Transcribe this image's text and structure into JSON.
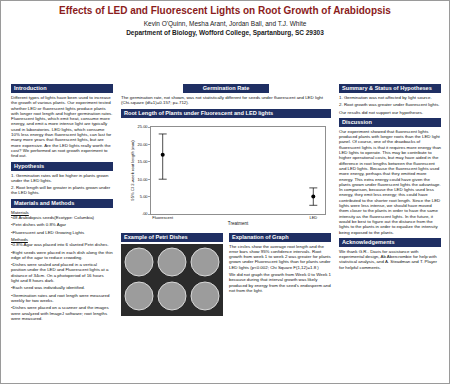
{
  "header": {
    "title": "Effects of LED and Fluorescent Lights on Root Growth of Arabidopsis",
    "authors": "Kevin O'Quinn, Mesha Arant, Jordan Ball, and T.J. White",
    "department": "Department of Biology, Wofford College, Spartanburg, SC 29303"
  },
  "sections": {
    "introduction": {
      "heading": "Introduction",
      "text": "Different types of lights have been used to increase the growth of various plants. Our experiment tested whether LED or fluorescent lights produce plants with longer root length and higher germination rates. Fluorescent lights, which emit heat, consume more energy, and emit a more intense light are typically used in laboratories.  LED lights, which consume 10% less energy than fluorescent lights, can last for many more years that fluorescent lights, but are more expensive. Are the LED lights really worth the cost? We performed an root growth experiment to find out."
    },
    "hypothesis": {
      "heading": "Hypothesis",
      "items": [
        "1. Germination rates will be higher in plants grown under the LED lights.",
        "2. Root length will be greater in plants grown under the LED lights."
      ]
    },
    "materials_and_methods": {
      "heading": "Materials and Methods",
      "materials_heading": "Materials",
      "materials": [
        "•48 Arabidopsis seeds(Ecotype: Columbia)",
        "•Petri dishes with 0.8% Agar",
        "•Fluorescent and LED Growing Lights"
      ],
      "methods_heading": "Methods",
      "methods": [
        "•0.8% Agar was placed into 6 slanted Petri dishes.",
        "•Eight seeds were placed in each dish along the thin edge of the agar to reduce crowding.",
        "•Dishes were sealed and placed in a vertical position under the LED and Fluorescent lights at a distance of 34cm. On a photoperiod of 16 hours light and 8 hours dark.",
        "•Each seed was individually identified.",
        "•Germination rates and root length were measured weekly for two weeks.",
        "•Dishes were placed on a scanner and the images were analyzed with ImageJ software; root lengths were measured."
      ]
    },
    "germination_rate": {
      "heading": "Germination Rate",
      "text": "The germination rate, not shown, was not statistically different  for seeds under fluorescent and LED light (Chi-square (df=1)=0.157; p=.712)."
    },
    "example": {
      "heading": "Example of Petri Dishes"
    },
    "explanation": {
      "heading": "Explanation of Graph",
      "paragraphs": [
        "The circles show the average root length and the error bars show 95% confidence intervals. Root growth from week 1 to week 2 was greater for plants grown under Fluorescent lights than for plants under LED lights (p<0.002; Chi Square F(1,12)=1.8 )",
        "We did not graph the growth from Week 0 to Week 1 because during that interval growth was likely produced by energy from the seed's endosperm and not from the light."
      ]
    },
    "summary": {
      "heading": "Summary & Status of Hypotheses",
      "items": [
        "1. Germination was not affected by light source.",
        "2. Root growth was greater under fluorescent lights.",
        "Our results did not support our hypotheses."
      ]
    },
    "discussion": {
      "heading": "Discussion",
      "text": "Our experiment showed that fluorescent lights produced plants with longer roots than the LED light panel. Of course, one of the drawbacks of fluorescent lights is that it requires more energy than LED lights to operate. This may be contribute to higher operational costs, but may have aided in the difference in root lengths between the fluorescent and LED lights. Because the fluorescent lights used more energy, perhaps that they emitted more energy. This extra energy could have given the plants grown under fluorescent lights the advantage. In comparison, because the LED lights used less energy, they emit less energy; this could have contributed to the shorter root length. Since the LED lights were less intense, we should have moved them closer to the plants in order to have the same intensity as the fluorescent lights. In the future, it would be best to figure out the distance from the lights to the plants in order to equalize the intensity being exposed to the plants."
    },
    "acknowledgements": {
      "heading": "Acknowledgements",
      "text": "We thank G.R.. Davis for assistance with experimental design, Ab Abercrombie for help with statistical analysis, and  A. Steadman and T. Player for helpful comments."
    }
  },
  "chart_data": {
    "type": "scatter",
    "title": "Root Length of Plants under Fluorescent and LED lights",
    "x_label": "Treatment",
    "y_label": "95% CI 2-week root length (mm)",
    "categories": [
      "Fluorescent",
      "LED"
    ],
    "values": [
      17,
      5
    ],
    "ci_low": [
      10,
      2.5
    ],
    "ci_high": [
      23,
      7.5
    ],
    "color": "#000000",
    "marker": "circle",
    "grid": false,
    "ylim": [
      0,
      25
    ],
    "yticks": [
      {
        "value": 0,
        "label": ".00"
      },
      {
        "value": 5,
        "label": "5.00"
      },
      {
        "value": 10,
        "label": "10.00"
      },
      {
        "value": 15,
        "label": "15.00"
      },
      {
        "value": 20,
        "label": "20.00"
      },
      {
        "value": 25,
        "label": "25.00"
      }
    ]
  }
}
